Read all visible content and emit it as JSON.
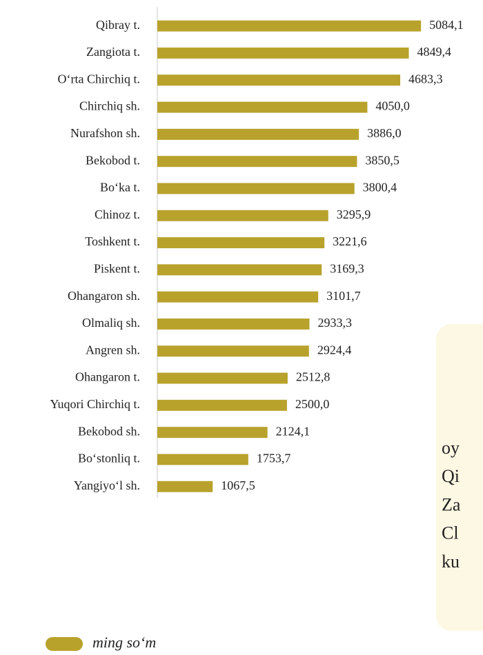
{
  "chart_data": {
    "type": "bar",
    "orientation": "horizontal",
    "categories": [
      "Qibray t.",
      "Zangiota t.",
      "O‘rta Chirchiq t.",
      "Chirchiq sh.",
      "Nurafshon sh.",
      "Bekobod t.",
      "Bo‘ka t.",
      "Chinoz t.",
      "Toshkent t.",
      "Piskent t.",
      "Ohangaron sh.",
      "Olmaliq sh.",
      "Angren sh.",
      "Ohangaron t.",
      "Yuqori Chirchiq t.",
      "Bekobod sh.",
      "Bo‘stonliq t.",
      "Yangiyo‘l sh."
    ],
    "series": [
      {
        "name": "ming so‘m",
        "color": "#b8a22c",
        "values": [
          5084.1,
          4849.4,
          4683.3,
          4050.0,
          3886.0,
          3850.5,
          3800.4,
          3295.9,
          3221.6,
          3169.3,
          3101.7,
          2933.3,
          2924.4,
          2512.8,
          2500.0,
          2124.1,
          1753.7,
          1067.5
        ],
        "value_labels": [
          "5084,1",
          "4849,4",
          "4683,3",
          "4050,0",
          "3886,0",
          "3850,5",
          "3800,4",
          "3295,9",
          "3221,6",
          "3169,3",
          "3101,7",
          "2933,3",
          "2924,4",
          "2512,8",
          "2500,0",
          "2124,1",
          "1753,7",
          "1067,5"
        ]
      }
    ],
    "xlim": [
      0,
      6000
    ],
    "legend": "bottom-left",
    "annotations": [
      "oy",
      "Qi",
      "Za",
      "Cl",
      "ku"
    ]
  }
}
